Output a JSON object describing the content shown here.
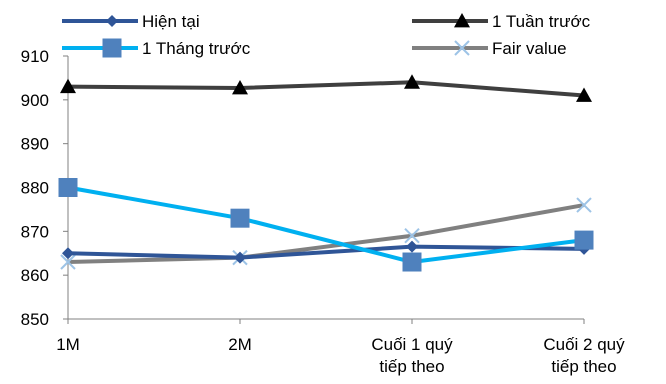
{
  "chart_data": {
    "type": "line",
    "title": "",
    "xlabel": "",
    "ylabel": "",
    "ylim": [
      850,
      910
    ],
    "yticks": [
      850,
      860,
      870,
      880,
      890,
      900,
      910
    ],
    "ytick_labels": [
      "850",
      "860",
      "870",
      "880",
      "890",
      "900",
      "910"
    ],
    "grid": false,
    "legend_position": "top",
    "categories": [
      [
        "1M"
      ],
      [
        "2M"
      ],
      [
        "Cuối 1 quý",
        "tiếp theo"
      ],
      [
        "Cuối 2 quý",
        "tiếp theo"
      ]
    ],
    "series": [
      {
        "name": "Hiện tại",
        "values": [
          865,
          864,
          866.5,
          866
        ],
        "color": "#2F5597",
        "marker": "diamond"
      },
      {
        "name": "1 Tuần trước",
        "values": [
          903,
          902.7,
          904,
          901
        ],
        "color": "#3F3F3F",
        "marker": "triangle"
      },
      {
        "name": "1 Tháng trước",
        "values": [
          880,
          873,
          863,
          868
        ],
        "color": "#00B0F0",
        "marker": "square"
      },
      {
        "name": "Fair value",
        "values": [
          863,
          864,
          869,
          876
        ],
        "color": "#808080",
        "marker": "x"
      }
    ]
  }
}
